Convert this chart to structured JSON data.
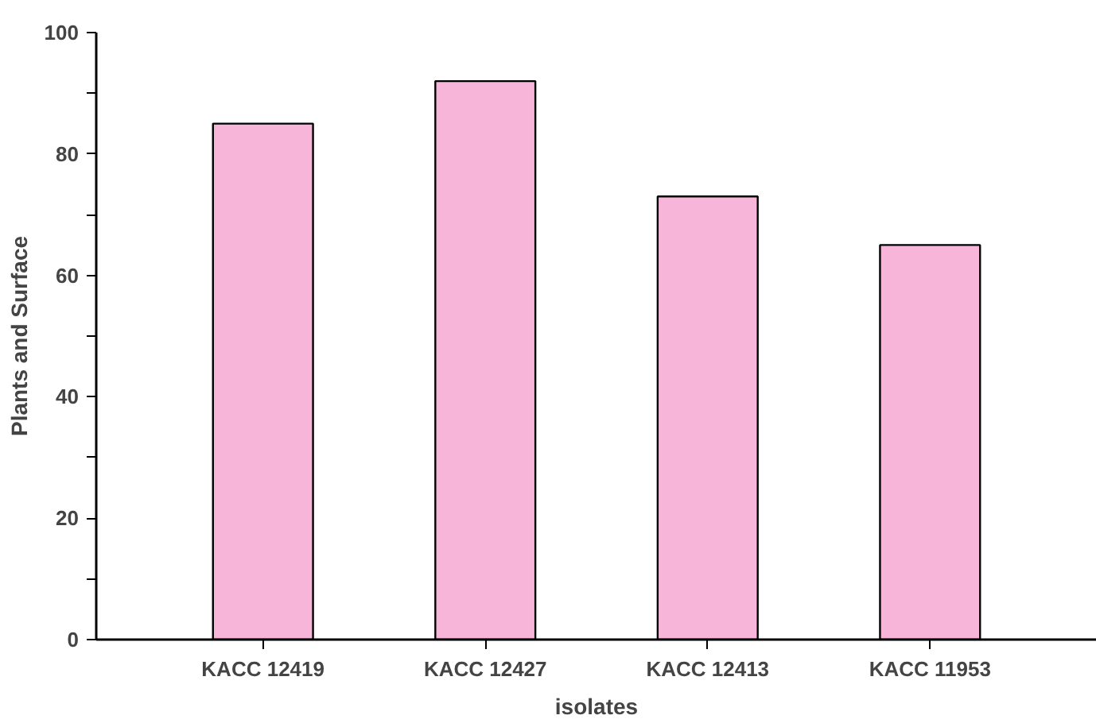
{
  "chart_data": {
    "type": "bar",
    "xlabel": "isolates",
    "ylabel": "Plants and Surface",
    "categories": [
      "KACC 12419",
      "KACC 12427",
      "KACC 12413",
      "KACC 11953"
    ],
    "values": [
      85,
      92,
      73,
      65
    ],
    "color": "#f7b6d9",
    "ylim": [
      0,
      100
    ],
    "yticks": [
      0,
      {
        "value": 10,
        "label": null
      },
      20,
      {
        "value": 30,
        "label": null
      },
      40,
      {
        "value": 50,
        "label": null
      },
      60,
      {
        "value": 70,
        "label": null
      },
      80,
      {
        "value": 90,
        "label": null
      },
      100
    ],
    "grid": false
  }
}
